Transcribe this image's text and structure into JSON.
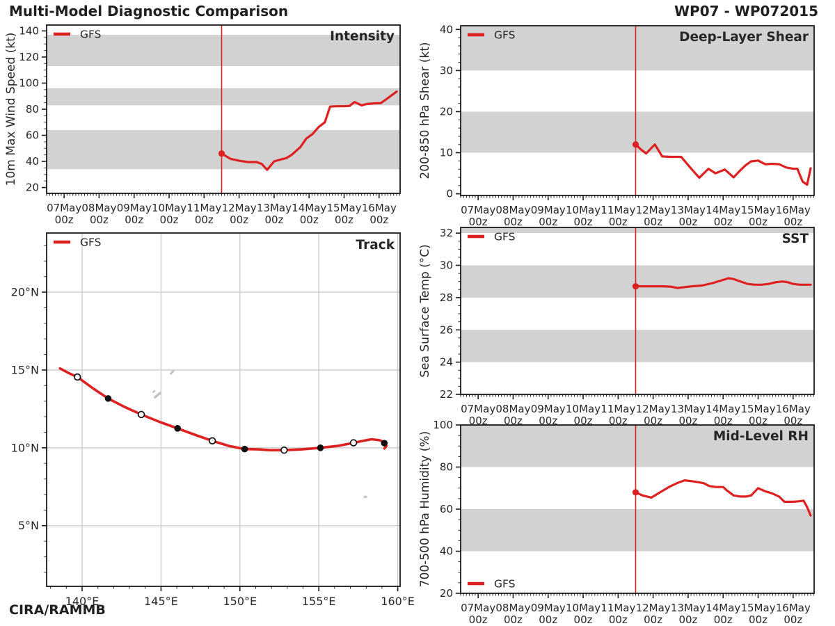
{
  "header": {
    "title": "Multi-Model Diagnostic Comparison",
    "storm_id": "WP07 - WP072015",
    "credit": "CIRA/RAMMB"
  },
  "legend_label": "GFS",
  "colors": {
    "line_red": "#dd2020",
    "band_gray": "#d2d2d2",
    "frame": "#1a1a1a",
    "map_grid": "#cbcbcb",
    "land": "#c2c2c2",
    "tick_text": "#262626",
    "title_text": "#242424"
  },
  "time_axis": {
    "domain": [
      6.5,
      16.6
    ],
    "major_ticks": [
      7,
      8,
      9,
      10,
      11,
      12,
      13,
      14,
      15,
      16
    ],
    "major_labels": [
      "07May",
      "08May",
      "09May",
      "10May",
      "11May",
      "12May",
      "13May",
      "14May",
      "15May",
      "16May"
    ],
    "sub_label": "00z",
    "minor_per_day": 12,
    "analysis_time": 11.5
  },
  "chart_data": [
    {
      "id": "intensity",
      "type": "line",
      "title": "Intensity",
      "ylabel": "10m Max Wind Speed (kt)",
      "legend_pos": "top-left",
      "ylim": [
        15.5,
        144.5
      ],
      "yticks": [
        20,
        40,
        60,
        80,
        100,
        120,
        140
      ],
      "yminor": 5,
      "bands": [
        [
          34,
          64
        ],
        [
          83,
          96
        ],
        [
          113,
          137
        ]
      ],
      "series": [
        {
          "name": "GFS",
          "points": [
            [
              11.5,
              46
            ],
            [
              11.75,
              42
            ],
            [
              12.0,
              40.5
            ],
            [
              12.25,
              39.5
            ],
            [
              12.5,
              39.5
            ],
            [
              12.65,
              38
            ],
            [
              12.8,
              33.5
            ],
            [
              13.0,
              40
            ],
            [
              13.2,
              41.5
            ],
            [
              13.35,
              42.5
            ],
            [
              13.5,
              45
            ],
            [
              13.75,
              51
            ],
            [
              13.92,
              57.5
            ],
            [
              14.1,
              61
            ],
            [
              14.28,
              66.5
            ],
            [
              14.45,
              70
            ],
            [
              14.6,
              82
            ],
            [
              14.8,
              82.3
            ],
            [
              15.0,
              82.3
            ],
            [
              15.15,
              82.5
            ],
            [
              15.3,
              85.5
            ],
            [
              15.5,
              83
            ],
            [
              15.65,
              84
            ],
            [
              15.85,
              84.5
            ],
            [
              16.05,
              84.7
            ],
            [
              16.2,
              87.5
            ],
            [
              16.35,
              90.5
            ],
            [
              16.5,
              93.5
            ]
          ]
        }
      ]
    },
    {
      "id": "shear",
      "type": "line",
      "title": "Deep-Layer Shear",
      "ylabel": "200-850 hPa Shear (kt)",
      "legend_pos": "top-left",
      "ylim": [
        -0.4,
        40.9
      ],
      "yticks": [
        0,
        10,
        20,
        30,
        40
      ],
      "yminor": 2,
      "bands": [
        [
          10,
          20
        ],
        [
          30,
          40.9
        ]
      ],
      "series": [
        {
          "name": "GFS",
          "points": [
            [
              11.5,
              12
            ],
            [
              11.65,
              10.8
            ],
            [
              11.8,
              9.8
            ],
            [
              12.05,
              12
            ],
            [
              12.26,
              9.1
            ],
            [
              12.5,
              9
            ],
            [
              12.8,
              9
            ],
            [
              13.0,
              7
            ],
            [
              13.15,
              5.5
            ],
            [
              13.32,
              3.9
            ],
            [
              13.58,
              6.1
            ],
            [
              13.78,
              5.0
            ],
            [
              14.05,
              5.9
            ],
            [
              14.3,
              4.0
            ],
            [
              14.5,
              5.8
            ],
            [
              14.65,
              7.0
            ],
            [
              14.8,
              7.9
            ],
            [
              15.0,
              8.1
            ],
            [
              15.2,
              7.2
            ],
            [
              15.4,
              7.3
            ],
            [
              15.6,
              7.2
            ],
            [
              15.8,
              6.4
            ],
            [
              16.0,
              6.1
            ],
            [
              16.12,
              6.1
            ],
            [
              16.27,
              3.0
            ],
            [
              16.4,
              2.2
            ],
            [
              16.5,
              6.2
            ]
          ]
        }
      ]
    },
    {
      "id": "sst",
      "type": "line",
      "title": "SST",
      "ylabel": "Sea Surface Temp (°C)",
      "legend_pos": "top-left",
      "ylim": [
        22,
        32.35
      ],
      "yticks": [
        22,
        24,
        26,
        28,
        30,
        32
      ],
      "yminor": 0.5,
      "bands": [
        [
          24,
          26
        ],
        [
          28,
          30
        ],
        [
          32,
          32.35
        ]
      ],
      "series": [
        {
          "name": "GFS",
          "points": [
            [
              11.5,
              28.7
            ],
            [
              11.75,
              28.7
            ],
            [
              12.0,
              28.7
            ],
            [
              12.25,
              28.7
            ],
            [
              12.5,
              28.68
            ],
            [
              12.7,
              28.6
            ],
            [
              12.9,
              28.65
            ],
            [
              13.1,
              28.7
            ],
            [
              13.4,
              28.75
            ],
            [
              13.7,
              28.9
            ],
            [
              14.0,
              29.1
            ],
            [
              14.15,
              29.2
            ],
            [
              14.3,
              29.15
            ],
            [
              14.5,
              29.0
            ],
            [
              14.7,
              28.85
            ],
            [
              14.9,
              28.8
            ],
            [
              15.1,
              28.8
            ],
            [
              15.3,
              28.85
            ],
            [
              15.5,
              28.95
            ],
            [
              15.7,
              29.0
            ],
            [
              15.85,
              28.95
            ],
            [
              16.0,
              28.85
            ],
            [
              16.2,
              28.8
            ],
            [
              16.5,
              28.8
            ]
          ]
        }
      ]
    },
    {
      "id": "rh",
      "type": "line",
      "title": "Mid-Level RH",
      "ylabel": "700-500 hPa Humidity (%)",
      "legend_pos": "bottom-left",
      "ylim": [
        20,
        100
      ],
      "yticks": [
        20,
        40,
        60,
        80,
        100
      ],
      "yminor": 5,
      "bands": [
        [
          40,
          60
        ],
        [
          80,
          100
        ]
      ],
      "series": [
        {
          "name": "GFS",
          "points": [
            [
              11.5,
              68
            ],
            [
              11.7,
              66.5
            ],
            [
              11.95,
              65.5
            ],
            [
              12.2,
              68
            ],
            [
              12.45,
              70.5
            ],
            [
              12.7,
              72.5
            ],
            [
              12.9,
              73.7
            ],
            [
              13.1,
              73.3
            ],
            [
              13.3,
              72.8
            ],
            [
              13.45,
              72.3
            ],
            [
              13.6,
              71
            ],
            [
              13.8,
              70.5
            ],
            [
              14.0,
              70.5
            ],
            [
              14.1,
              69
            ],
            [
              14.3,
              66.5
            ],
            [
              14.5,
              66
            ],
            [
              14.65,
              66
            ],
            [
              14.8,
              66.5
            ],
            [
              15.0,
              70
            ],
            [
              15.2,
              68.5
            ],
            [
              15.4,
              67.5
            ],
            [
              15.6,
              66
            ],
            [
              15.75,
              63.5
            ],
            [
              16.0,
              63.5
            ],
            [
              16.15,
              63.7
            ],
            [
              16.3,
              64
            ],
            [
              16.4,
              61
            ],
            [
              16.5,
              57
            ]
          ]
        }
      ]
    },
    {
      "id": "track",
      "type": "track",
      "title": "Track",
      "lon_domain": [
        137.75,
        160.15
      ],
      "lat_domain": [
        1.1,
        23.8
      ],
      "lon_ticks": [
        140,
        145,
        150,
        155,
        160
      ],
      "lon_labels": [
        "140°E",
        "145°E",
        "150°E",
        "155°E",
        "160°E"
      ],
      "lat_ticks": [
        5,
        10,
        15,
        20
      ],
      "lat_labels": [
        "5°N",
        "10°N",
        "15°N",
        "20°N"
      ],
      "line": [
        [
          138.6,
          15.1
        ],
        [
          139.15,
          14.8
        ],
        [
          139.7,
          14.55
        ],
        [
          140.65,
          13.85
        ],
        [
          141.65,
          13.17
        ],
        [
          142.7,
          12.62
        ],
        [
          143.75,
          12.14
        ],
        [
          144.9,
          11.67
        ],
        [
          146.05,
          11.25
        ],
        [
          147.2,
          10.82
        ],
        [
          148.25,
          10.45
        ],
        [
          149.3,
          10.12
        ],
        [
          150.3,
          9.92
        ],
        [
          151.2,
          9.9
        ],
        [
          151.9,
          9.85
        ],
        [
          152.8,
          9.85
        ],
        [
          153.9,
          9.9
        ],
        [
          155.1,
          10.0
        ],
        [
          156.2,
          10.12
        ],
        [
          157.2,
          10.32
        ],
        [
          157.8,
          10.45
        ],
        [
          158.35,
          10.55
        ],
        [
          158.9,
          10.48
        ],
        [
          159.15,
          10.3
        ],
        [
          159.28,
          10.12
        ],
        [
          159.16,
          9.96
        ]
      ],
      "open_markers": [
        [
          139.7,
          14.55
        ],
        [
          143.75,
          12.14
        ],
        [
          148.25,
          10.45
        ],
        [
          152.8,
          9.85
        ],
        [
          157.2,
          10.32
        ]
      ],
      "filled_markers": [
        [
          141.65,
          13.17
        ],
        [
          146.05,
          11.25
        ],
        [
          150.3,
          9.92
        ],
        [
          155.1,
          10.0
        ],
        [
          159.15,
          10.3
        ]
      ],
      "land": [
        {
          "lon": 144.78,
          "lat": 13.38,
          "w": 13,
          "h": 3.5,
          "rot": -40
        },
        {
          "lon": 144.55,
          "lat": 13.62,
          "w": 5,
          "h": 2.5,
          "rot": -40
        },
        {
          "lon": 145.7,
          "lat": 14.85,
          "w": 8,
          "h": 3,
          "rot": -45
        },
        {
          "lon": 157.95,
          "lat": 6.85,
          "w": 5,
          "h": 3.5,
          "rot": 0
        }
      ]
    }
  ]
}
